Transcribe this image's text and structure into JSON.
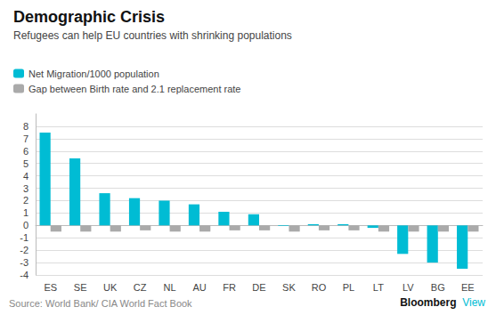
{
  "chart_data": {
    "type": "bar",
    "title": "Demographic Crisis",
    "subtitle": "Refugees can help EU countries with shrinking populations",
    "annotations": [
      "Source: World Bank/ CIA World Fact Book",
      "Bloomberg",
      "View"
    ],
    "categories": [
      "ES",
      "SE",
      "UK",
      "CZ",
      "NL",
      "AU",
      "FR",
      "DE",
      "SK",
      "RO",
      "PL",
      "LT",
      "LV",
      "BG",
      "EE"
    ],
    "series": [
      {
        "name": "Net Migration/1000 population",
        "color": "#00bcd4",
        "values": [
          7.5,
          5.4,
          2.6,
          2.2,
          2.0,
          1.7,
          1.1,
          0.9,
          -0.05,
          0.1,
          0.1,
          -0.2,
          -2.3,
          -3.0,
          -3.5
        ]
      },
      {
        "name": "Gap between Birth rate and 2.1 replacement rate",
        "color": "#aaaaaa",
        "values": [
          -0.5,
          -0.5,
          -0.5,
          -0.4,
          -0.5,
          -0.5,
          -0.4,
          -0.4,
          -0.5,
          -0.4,
          -0.4,
          -0.5,
          -0.5,
          -0.5,
          -0.5
        ]
      }
    ],
    "ylim": [
      -4,
      9
    ],
    "yticks": [
      -4,
      -3,
      -2,
      -1,
      0,
      1,
      2,
      3,
      4,
      5,
      6,
      7,
      8
    ],
    "grid": true,
    "legend": "top-left"
  }
}
